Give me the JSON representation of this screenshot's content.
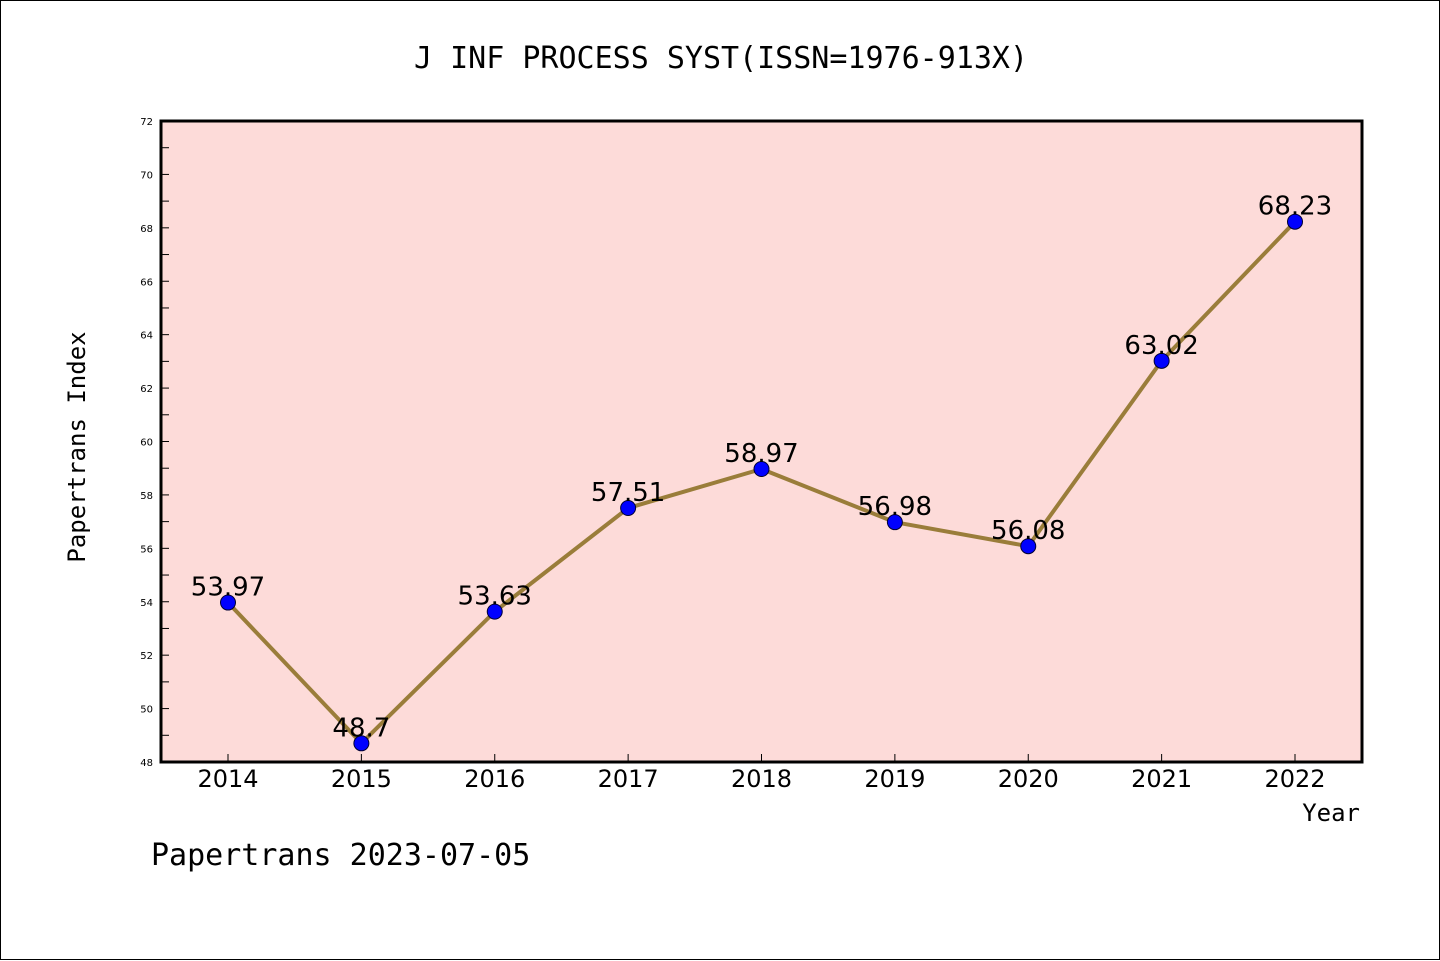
{
  "chart_data": {
    "type": "line",
    "title": "J INF PROCESS SYST(ISSN=1976-913X)",
    "xlabel": "Year",
    "ylabel": "Papertrans Index",
    "categories": [
      "2014",
      "2015",
      "2016",
      "2017",
      "2018",
      "2019",
      "2020",
      "2021",
      "2022"
    ],
    "values": [
      53.97,
      48.7,
      53.63,
      57.51,
      58.97,
      56.98,
      56.08,
      63.02,
      68.23
    ],
    "data_labels": [
      "53.97",
      "48.7",
      "53.63",
      "57.51",
      "58.97",
      "56.98",
      "56.08",
      "63.02",
      "68.23"
    ],
    "ylim": [
      48,
      72
    ],
    "yticks": [
      "48",
      "50",
      "52",
      "54",
      "56",
      "58",
      "60",
      "62",
      "64",
      "66",
      "68",
      "70",
      "72"
    ],
    "grid": false,
    "legend": "none",
    "colors": {
      "plot_background": "#fddbd9",
      "line": "#9a7d3a",
      "marker": "#0000ff",
      "axis": "#000000"
    }
  },
  "footer": "Papertrans 2023-07-05"
}
